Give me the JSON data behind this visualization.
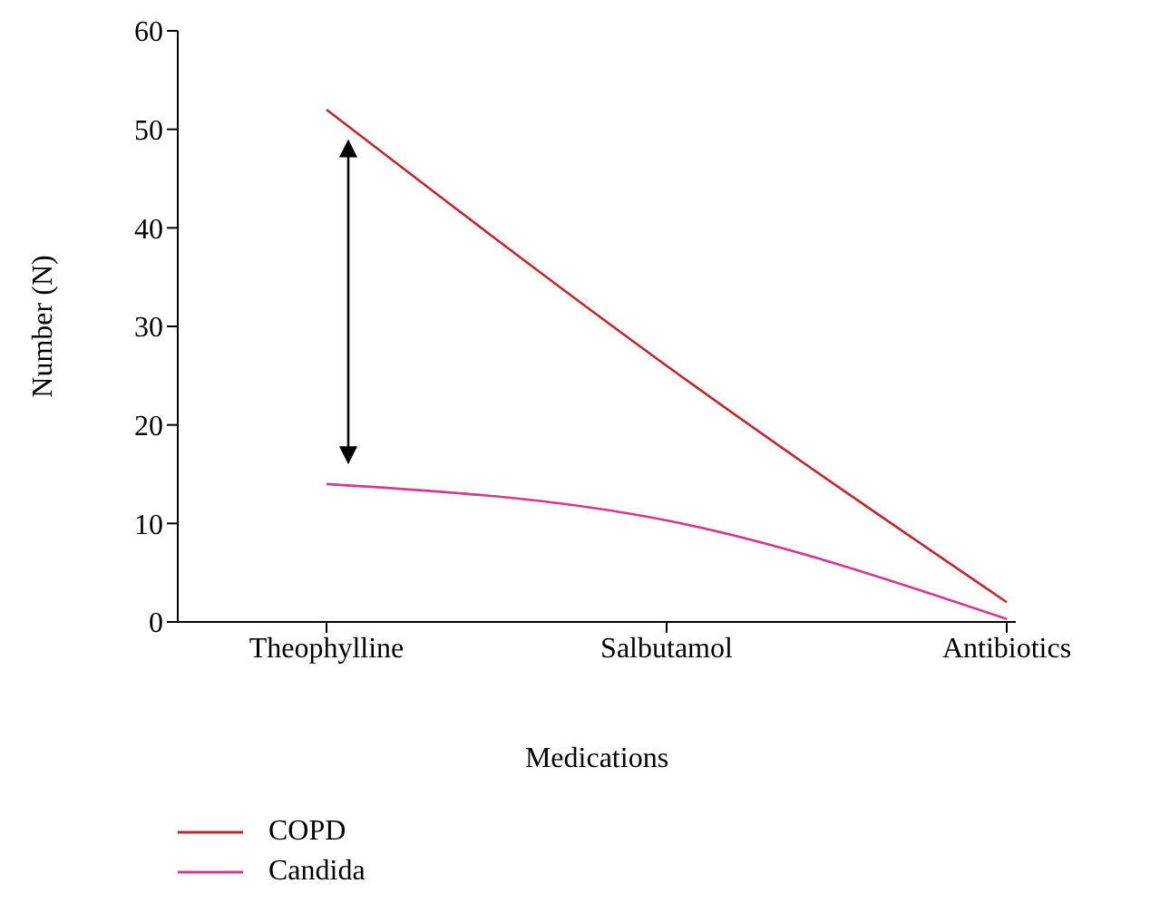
{
  "chart_data": {
    "type": "line",
    "xlabel": "Medications",
    "ylabel": "Number (N)",
    "categories": [
      "Theophylline",
      "Salbutamol",
      "Antibiotics"
    ],
    "series": [
      {
        "name": "COPD",
        "color": "#c0282d",
        "values": [
          52,
          26,
          2
        ]
      },
      {
        "name": "Candida",
        "color": "#d6388f",
        "values": [
          14,
          10.3,
          0.3
        ]
      }
    ],
    "ylim": [
      0,
      60
    ],
    "yticks": [
      0,
      10,
      20,
      30,
      40,
      50,
      60
    ],
    "legend": "bottom left",
    "marker": "none",
    "line_style": "solid"
  }
}
